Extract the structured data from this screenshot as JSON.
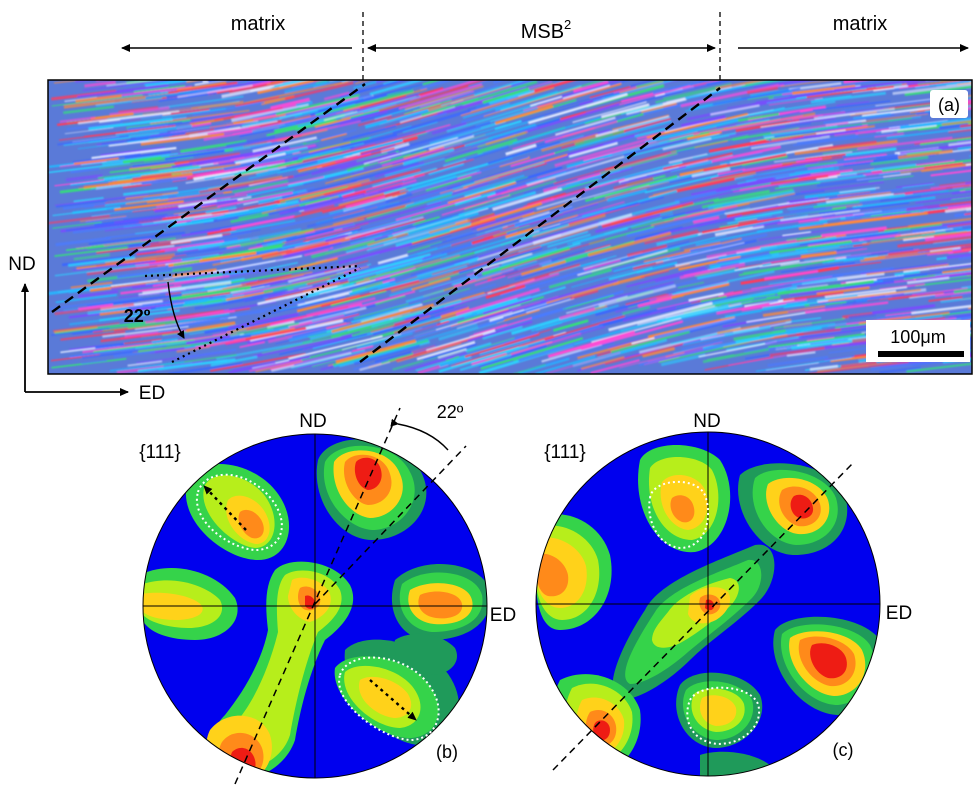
{
  "top": {
    "region_left": "matrix",
    "region_middle": "MSB",
    "region_middle_sup": "2",
    "region_right": "matrix",
    "panel_label": "(a)",
    "scale_bar": "100μm",
    "angle": "22º"
  },
  "axes": {
    "vertical": "ND",
    "horizontal": "ED"
  },
  "pole_figure_b": {
    "family": "{111}",
    "top_axis": "ND",
    "right_axis": "ED",
    "panel_label": "(b)",
    "rotation_angle": "22º"
  },
  "pole_figure_c": {
    "family": "{111}",
    "top_axis": "ND",
    "right_axis": "ED",
    "panel_label": "(c)"
  },
  "colors": {
    "contour_low": "#0000ee",
    "contour_teal": "#1f9a5a",
    "contour_green": "#35d34a",
    "contour_lime": "#b7ee1b",
    "contour_yellow": "#ffd21a",
    "contour_orange": "#ff8a1a",
    "contour_red": "#ee1c14"
  }
}
